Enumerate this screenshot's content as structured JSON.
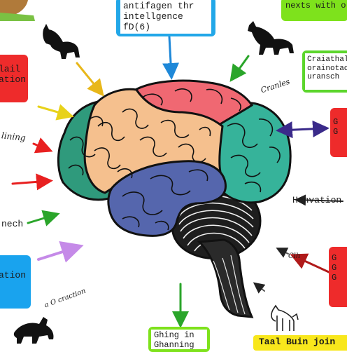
{
  "colors": {
    "frontal": "#f5c08e",
    "parietal": "#f06872",
    "occipital": "#36b39a",
    "temporal": "#5566ad",
    "cerebellum": "#1e1e1e",
    "brainstem": "#2a2a2a",
    "outline": "#111111"
  },
  "icons": [
    "cat-silhouette",
    "dog-silhouette",
    "wolf-silhouette",
    "dog-line-drawing"
  ],
  "boxes": {
    "top_center": {
      "lines": [
        "antifagen thr",
        "intellgence",
        "fD(6)"
      ],
      "fill": "#22a7e8"
    },
    "top_right": {
      "lines": [
        "nexts with o"
      ],
      "fill": "#7ee21c"
    },
    "right_upper": {
      "lines": [
        "Craiathal",
        "orainotaoch",
        "uransch"
      ],
      "fill": "#5cd62c"
    },
    "left_upper": {
      "lines": [
        "lail",
        "ation"
      ],
      "fill": "#ee2b2b"
    },
    "right_mid": {
      "lines": [
        "G",
        "G"
      ],
      "fill": "#ee2b2b"
    },
    "left_lower": {
      "lines": [
        "ation"
      ],
      "fill": "#19a3ee"
    },
    "right_lower": {
      "lines": [
        "G",
        "G",
        "G"
      ],
      "fill": "#ee2b2b"
    },
    "bottom_center": {
      "lines": [
        "Ghing in",
        "Ghanning"
      ],
      "fill": "#7ee21c"
    },
    "bottom_right": {
      "lines": [
        "Taal Buin join"
      ],
      "fill": "#f8e71c"
    }
  },
  "labels": {
    "left_ining": "lining",
    "left_nech": "nech",
    "right_envation": "Henvation",
    "mid_curve": "Cranles",
    "mid_right_small": "Clh",
    "lower_left_small": "a O craction"
  },
  "arrow_colors": [
    "#e8b71a",
    "#e8d21a",
    "#e82020",
    "#e82020",
    "#2aa52a",
    "#c58ae8",
    "#1e88d8",
    "#2aa52a",
    "#3a2a8a",
    "#b01a1a",
    "#2aa52a"
  ]
}
